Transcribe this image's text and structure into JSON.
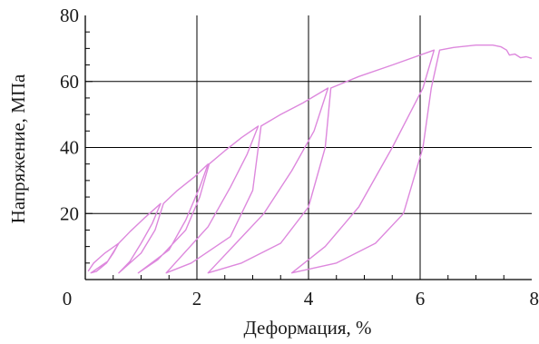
{
  "chart_data": {
    "type": "line",
    "title": "",
    "xlabel": "Деформация, %",
    "ylabel": "Напряжение, МПа",
    "xlim": [
      0,
      8
    ],
    "ylim": [
      0,
      80
    ],
    "x_ticks": [
      "0",
      "2",
      "4",
      "6",
      "8"
    ],
    "y_ticks": [
      "20",
      "40",
      "60",
      "80"
    ],
    "grid": true,
    "legend": "none",
    "colors": {
      "series": "#dd88dd",
      "grid": "#000000",
      "axis": "#000000"
    },
    "series": [
      {
        "points": [
          [
            0.05,
            2.5
          ],
          [
            0.15,
            5.0
          ],
          [
            0.35,
            8.0
          ],
          [
            0.6,
            11.0
          ],
          [
            0.5,
            8.0
          ],
          [
            0.38,
            5.0
          ],
          [
            0.2,
            2.5
          ],
          [
            0.1,
            2.0
          ],
          [
            0.4,
            5.5
          ],
          [
            0.6,
            11.0
          ],
          [
            0.8,
            14.5
          ],
          [
            1.05,
            18.5
          ],
          [
            1.35,
            23.0
          ],
          [
            1.2,
            17.0
          ],
          [
            1.0,
            11.0
          ],
          [
            0.8,
            5.5
          ],
          [
            0.6,
            2.0
          ],
          [
            1.0,
            8.0
          ],
          [
            1.25,
            15.0
          ],
          [
            1.4,
            23.0
          ],
          [
            1.65,
            27.0
          ],
          [
            1.95,
            31.0
          ],
          [
            2.2,
            35.0
          ],
          [
            2.05,
            28.0
          ],
          [
            1.8,
            18.0
          ],
          [
            1.5,
            9.0
          ],
          [
            0.95,
            2.0
          ],
          [
            1.3,
            6.0
          ],
          [
            1.8,
            15.0
          ],
          [
            2.05,
            25.0
          ],
          [
            2.22,
            35.0
          ],
          [
            2.5,
            39.0
          ],
          [
            2.8,
            43.0
          ],
          [
            3.1,
            46.5
          ],
          [
            2.9,
            38.0
          ],
          [
            2.6,
            28.0
          ],
          [
            2.2,
            16.0
          ],
          [
            1.45,
            2.0
          ],
          [
            1.9,
            5.0
          ],
          [
            2.6,
            13.0
          ],
          [
            3.0,
            27.0
          ],
          [
            3.15,
            46.5
          ],
          [
            3.5,
            50.0
          ],
          [
            3.9,
            53.5
          ],
          [
            4.35,
            58.0
          ],
          [
            4.1,
            45.0
          ],
          [
            3.7,
            33.0
          ],
          [
            3.2,
            20.0
          ],
          [
            2.2,
            2.0
          ],
          [
            2.8,
            5.0
          ],
          [
            3.5,
            11.0
          ],
          [
            4.0,
            22.0
          ],
          [
            4.3,
            40.0
          ],
          [
            4.4,
            58.0
          ],
          [
            4.9,
            61.5
          ],
          [
            5.5,
            65.0
          ],
          [
            6.25,
            69.5
          ],
          [
            6.05,
            58.0
          ],
          [
            5.5,
            40.0
          ],
          [
            4.9,
            22.0
          ],
          [
            4.3,
            10.0
          ],
          [
            3.7,
            2.0
          ],
          [
            4.5,
            5.0
          ],
          [
            5.2,
            11.0
          ],
          [
            5.7,
            20.0
          ],
          [
            6.05,
            40.0
          ],
          [
            6.2,
            58.0
          ],
          [
            6.35,
            69.5
          ],
          [
            6.6,
            70.3
          ],
          [
            7.0,
            71.0
          ],
          [
            7.3,
            71.0
          ],
          [
            7.45,
            70.5
          ],
          [
            7.55,
            69.5
          ],
          [
            7.6,
            68.0
          ],
          [
            7.7,
            68.3
          ],
          [
            7.8,
            67.2
          ],
          [
            7.9,
            67.5
          ],
          [
            8.0,
            67.0
          ]
        ]
      }
    ]
  }
}
